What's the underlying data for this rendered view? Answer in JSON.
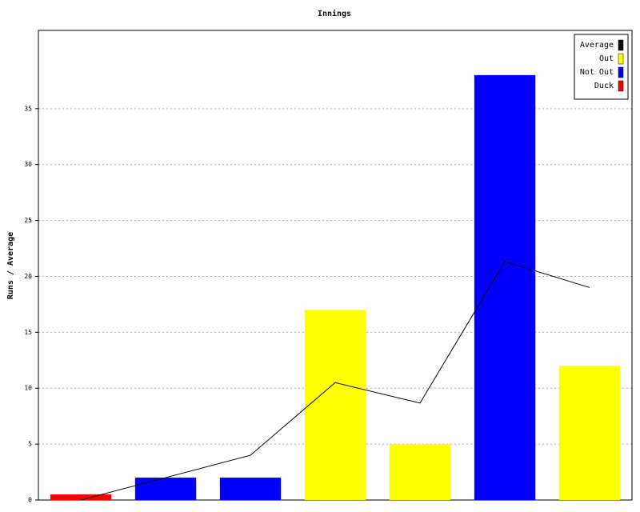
{
  "chart_data": {
    "type": "bar",
    "title": "Innings",
    "y_label": "Runs / Average",
    "categories": [
      null,
      null,
      null,
      null,
      null,
      null,
      null
    ],
    "series": [
      {
        "name": "Average",
        "color": "#000000",
        "type": "line",
        "values": [
          0,
          2,
          4,
          10.5,
          8.67,
          21.33,
          19
        ]
      },
      {
        "name": "Out",
        "color": "#ffff00",
        "values": [
          null,
          null,
          null,
          17,
          5,
          null,
          12
        ]
      },
      {
        "name": "Not Out",
        "color": "#0000ff",
        "values": [
          null,
          2,
          2,
          null,
          null,
          38,
          null
        ]
      },
      {
        "name": "Duck",
        "color": "#ff0000",
        "values": [
          0.5,
          null,
          null,
          null,
          null,
          null,
          null
        ]
      }
    ],
    "ylim": [
      0,
      42
    ],
    "yticks": [
      0,
      5,
      10,
      15,
      20,
      25,
      30,
      35
    ],
    "grid": true,
    "legend": "top-right"
  }
}
